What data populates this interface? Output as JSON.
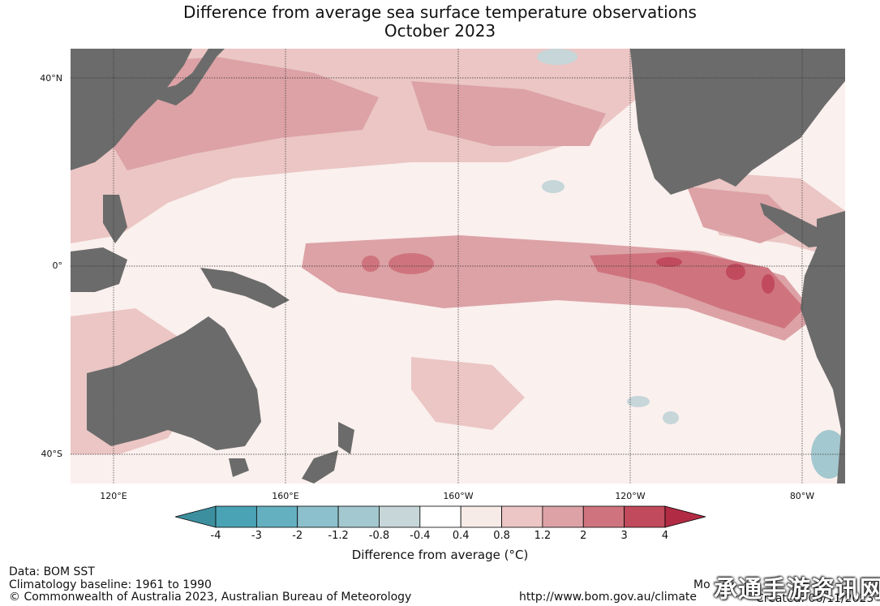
{
  "title_line1": "Difference from average sea surface temperature observations",
  "title_line2": "October 2023",
  "lat_labels": [
    "40°N",
    "0°",
    "40°S"
  ],
  "lon_labels": [
    "120°E",
    "160°E",
    "160°W",
    "120°W",
    "80°W"
  ],
  "colorbar": {
    "ticks": [
      "-4",
      "-3",
      "-2",
      "-1.2",
      "-0.8",
      "-0.4",
      "0.4",
      "0.8",
      "1.2",
      "2",
      "3",
      "4"
    ],
    "colors": [
      "#3c8f9f",
      "#4aa3b5",
      "#64b0c1",
      "#8cc0cc",
      "#a4c8cf",
      "#c6d6d9",
      "#ffffff",
      "#f7ebe8",
      "#ebc6c4",
      "#dca2a6",
      "#cf747e",
      "#c14a5d",
      "#b22b44"
    ],
    "label": "Difference from average (°C)"
  },
  "footer": {
    "data": "Data: BOM SST",
    "climatology": "Climatology baseline: 1961 to 1990",
    "copyright": "© Commonwealth of Australia 2023, Australian Bureau of Meteorology",
    "url": "http://www.bom.gov.au/climate",
    "mon": "Mo",
    "created": "Created: 06/11/2023"
  },
  "watermark": "承通手游资讯网",
  "map_colors": {
    "land": "#6b6b6b",
    "ocean_neutral": "#faf0ee",
    "warm_light": "#ebc6c4",
    "warm_mid": "#dca2a6",
    "warm_strong": "#cf747e",
    "warm_peak": "#c14a5d",
    "cool_light": "#c6d6d9",
    "cool_mid": "#a4c8cf"
  }
}
